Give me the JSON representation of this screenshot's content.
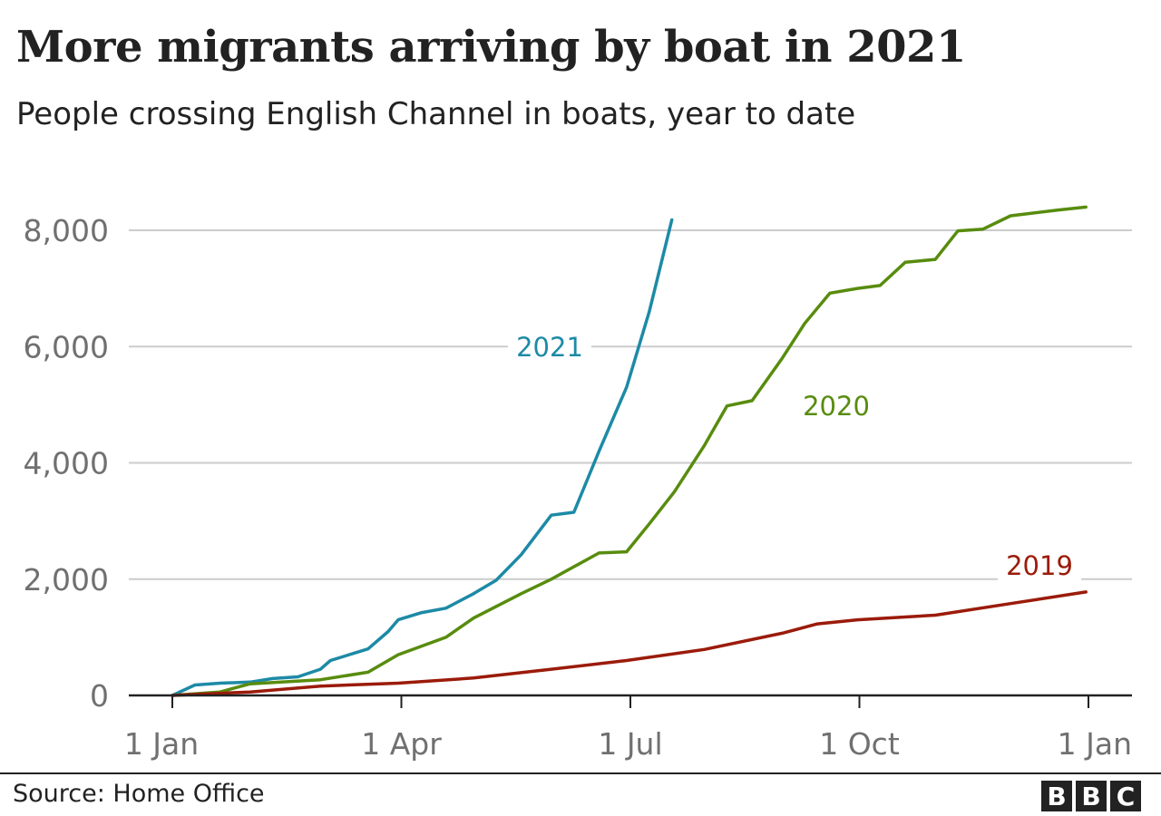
{
  "chart_data": {
    "type": "line",
    "title": "More migrants arriving by boat in 2021",
    "subtitle": "People crossing English Channel in boats, year to date",
    "xlabel": "",
    "ylabel": "",
    "x_ticks": [
      "1 Jan",
      "1 Apr",
      "1 Jul",
      "1 Oct",
      "1 Jan"
    ],
    "y_ticks": [
      "0",
      "2,000",
      "4,000",
      "6,000",
      "8,000"
    ],
    "xlim": [
      "1 Jan",
      "1 Jan"
    ],
    "ylim": [
      0,
      8000
    ],
    "grid": true,
    "legend": "direct labels on lines",
    "series": [
      {
        "name": "2021",
        "color": "#1d8aa6",
        "x": [
          "1 Jan",
          "10 Jan",
          "20 Jan",
          "1 Feb",
          "10 Feb",
          "20 Feb",
          "1 Mar",
          "5 Mar",
          "20 Mar",
          "28 Mar",
          "1 Apr",
          "10 Apr",
          "20 Apr",
          "1 May",
          "10 May",
          "20 May",
          "1 Jun",
          "10 Jun",
          "20 Jun",
          "1 Jul",
          "10 Jul",
          "19 Jul"
        ],
        "values": [
          0,
          180,
          210,
          230,
          290,
          320,
          450,
          600,
          800,
          1100,
          1300,
          1420,
          1500,
          1750,
          1980,
          2420,
          3100,
          3150,
          4200,
          5300,
          6600,
          8180
        ]
      },
      {
        "name": "2020",
        "color": "#588c0e",
        "x": [
          "1 Jan",
          "20 Jan",
          "1 Feb",
          "1 Mar",
          "20 Mar",
          "1 Apr",
          "20 Apr",
          "1 May",
          "20 May",
          "1 Jun",
          "20 Jun",
          "1 Jul",
          "10 Jul",
          "20 Jul",
          "1 Aug",
          "10 Aug",
          "20 Aug",
          "1 Sep",
          "10 Sep",
          "20 Sep",
          "1 Oct",
          "10 Oct",
          "20 Oct",
          "1 Nov",
          "10 Nov",
          "20 Nov",
          "1 Dec",
          "20 Dec",
          "31 Dec"
        ],
        "values": [
          0,
          60,
          200,
          270,
          400,
          700,
          1000,
          1330,
          1750,
          2000,
          2450,
          2470,
          2950,
          3500,
          4300,
          4980,
          5070,
          5800,
          6400,
          6920,
          7000,
          7050,
          7450,
          7500,
          7990,
          8020,
          8250,
          8350,
          8400
        ]
      },
      {
        "name": "2019",
        "color": "#9b1b0a",
        "x": [
          "1 Jan",
          "1 Feb",
          "1 Mar",
          "1 Apr",
          "1 May",
          "1 Jun",
          "1 Jul",
          "1 Aug",
          "1 Sep",
          "15 Sep",
          "1 Oct",
          "1 Nov",
          "1 Dec",
          "31 Dec"
        ],
        "values": [
          0,
          60,
          160,
          210,
          300,
          450,
          600,
          790,
          1070,
          1230,
          1300,
          1380,
          1580,
          1780
        ]
      }
    ]
  },
  "footer": {
    "source": "Source: Home Office",
    "logo_letters": [
      "B",
      "B",
      "C"
    ]
  }
}
